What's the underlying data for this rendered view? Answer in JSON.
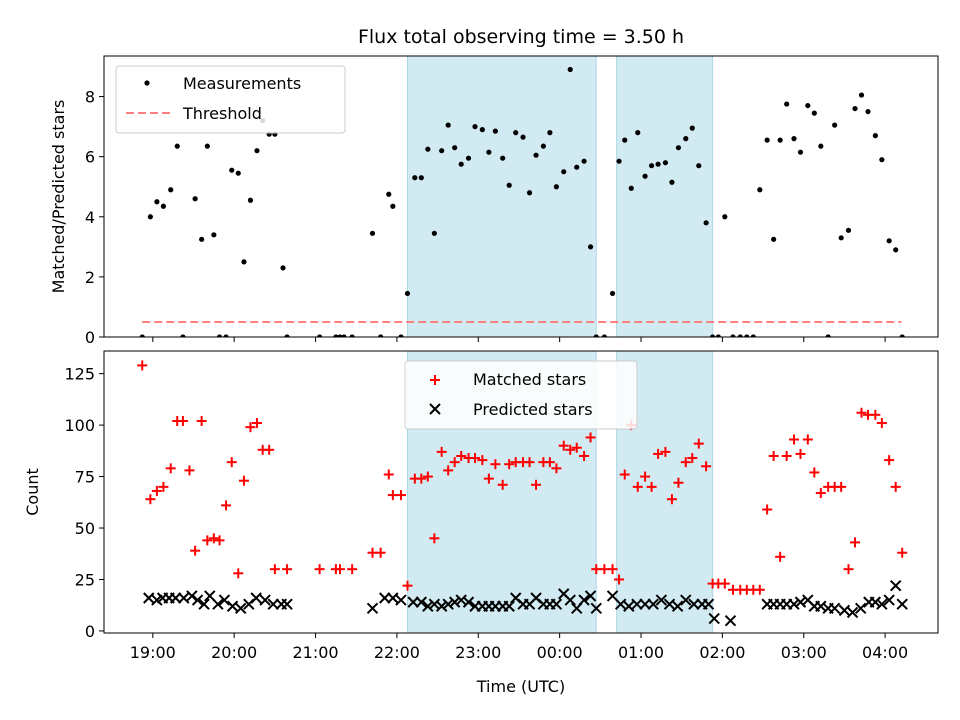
{
  "chart_data": [
    {
      "type": "scatter",
      "title": "Flux total observing time = 3.50 h",
      "xlabel": "",
      "ylabel": "Matched/Predicted stars",
      "xlim": [
        18.4,
        28.65
      ],
      "ylim": [
        0,
        9.35
      ],
      "yticks": [
        0,
        2,
        4,
        6,
        8
      ],
      "legend_position": "top-left",
      "shaded_intervals": [
        [
          22.13,
          24.45
        ],
        [
          24.7,
          25.88
        ]
      ],
      "series": [
        {
          "name": "Measurements",
          "kind": "points",
          "color": "#000000",
          "x": [
            18.87,
            18.97,
            19.05,
            19.13,
            19.22,
            19.3,
            19.37,
            19.52,
            19.6,
            19.67,
            19.75,
            19.82,
            19.9,
            19.97,
            20.05,
            20.12,
            20.2,
            20.28,
            20.35,
            20.43,
            20.5,
            20.6,
            20.65,
            21.05,
            21.25,
            21.3,
            21.35,
            21.45,
            21.7,
            21.8,
            21.9,
            21.95,
            22.05,
            22.13,
            22.22,
            22.3,
            22.38,
            22.46,
            22.55,
            22.63,
            22.71,
            22.79,
            22.88,
            22.96,
            23.05,
            23.13,
            23.21,
            23.3,
            23.38,
            23.46,
            23.55,
            23.63,
            23.71,
            23.8,
            23.88,
            23.96,
            24.05,
            24.13,
            24.21,
            24.3,
            24.38,
            24.45,
            24.55,
            24.65,
            24.73,
            24.8,
            24.88,
            24.96,
            25.05,
            25.13,
            25.21,
            25.3,
            25.38,
            25.46,
            25.55,
            25.63,
            25.71,
            25.8,
            25.88,
            25.95,
            26.03,
            26.13,
            26.22,
            26.3,
            26.38,
            26.46,
            26.55,
            26.63,
            26.71,
            26.79,
            26.88,
            26.96,
            27.05,
            27.13,
            27.21,
            27.3,
            27.38,
            27.46,
            27.55,
            27.63,
            27.71,
            27.79,
            27.88,
            27.96,
            28.05,
            28.13,
            28.21
          ],
          "y": [
            0,
            4.0,
            4.5,
            4.35,
            4.9,
            6.35,
            0,
            4.6,
            3.25,
            6.35,
            3.4,
            0,
            0,
            5.55,
            5.45,
            2.5,
            4.55,
            6.2,
            7.2,
            6.75,
            6.75,
            2.3,
            0,
            0,
            0,
            0,
            0,
            0,
            3.45,
            0,
            4.75,
            4.35,
            0,
            1.45,
            5.3,
            5.3,
            6.25,
            3.45,
            6.2,
            7.05,
            6.3,
            5.75,
            5.95,
            7.0,
            6.9,
            6.15,
            6.85,
            5.95,
            5.05,
            6.8,
            6.65,
            4.8,
            6.05,
            6.35,
            6.8,
            5.0,
            5.5,
            8.9,
            5.65,
            5.85,
            3.0,
            0,
            0,
            1.45,
            5.85,
            6.55,
            4.95,
            6.8,
            5.35,
            5.7,
            5.75,
            5.8,
            5.15,
            6.3,
            6.6,
            6.95,
            5.7,
            3.8,
            0,
            0,
            4.0,
            0,
            0,
            0,
            0,
            4.9,
            6.55,
            3.25,
            6.55,
            7.75,
            6.6,
            6.15,
            7.7,
            7.45,
            6.35,
            0,
            7.05,
            3.3,
            3.55,
            7.6,
            8.05,
            7.5,
            6.7,
            5.9,
            3.2,
            2.9,
            0
          ]
        },
        {
          "name": "Threshold",
          "kind": "dashed-line",
          "color": "#ff8080",
          "x": [
            18.87,
            28.2
          ],
          "y": [
            0.5,
            0.5
          ]
        }
      ]
    },
    {
      "type": "scatter",
      "title": "",
      "xlabel": "Time (UTC)",
      "ylabel": "Count",
      "xlim": [
        18.4,
        28.65
      ],
      "ylim": [
        -1,
        136
      ],
      "yticks": [
        0,
        25,
        50,
        75,
        100,
        125
      ],
      "xticks": [
        {
          "value": 19,
          "label": "19:00"
        },
        {
          "value": 20,
          "label": "20:00"
        },
        {
          "value": 21,
          "label": "21:00"
        },
        {
          "value": 22,
          "label": "22:00"
        },
        {
          "value": 23,
          "label": "23:00"
        },
        {
          "value": 24,
          "label": "00:00"
        },
        {
          "value": 25,
          "label": "01:00"
        },
        {
          "value": 26,
          "label": "02:00"
        },
        {
          "value": 27,
          "label": "03:00"
        },
        {
          "value": 28,
          "label": "04:00"
        }
      ],
      "legend_position": "top-center",
      "shaded_intervals": [
        [
          22.13,
          24.45
        ],
        [
          24.7,
          25.88
        ]
      ],
      "series": [
        {
          "name": "Matched stars",
          "marker": "plus",
          "color": "#ff0000",
          "x": [
            18.87,
            18.97,
            19.05,
            19.13,
            19.22,
            19.3,
            19.37,
            19.45,
            19.52,
            19.6,
            19.67,
            19.75,
            19.82,
            19.9,
            19.97,
            20.05,
            20.12,
            20.2,
            20.28,
            20.35,
            20.43,
            20.5,
            20.65,
            21.05,
            21.25,
            21.3,
            21.45,
            21.7,
            21.8,
            21.9,
            21.95,
            22.05,
            22.13,
            22.22,
            22.3,
            22.38,
            22.46,
            22.55,
            22.63,
            22.71,
            22.79,
            22.88,
            22.96,
            23.05,
            23.13,
            23.21,
            23.3,
            23.38,
            23.46,
            23.55,
            23.63,
            23.71,
            23.8,
            23.88,
            23.96,
            24.05,
            24.13,
            24.21,
            24.3,
            24.38,
            24.45,
            24.55,
            24.65,
            24.73,
            24.8,
            24.88,
            24.96,
            25.05,
            25.13,
            25.21,
            25.3,
            25.38,
            25.46,
            25.55,
            25.63,
            25.71,
            25.8,
            25.88,
            25.95,
            26.03,
            26.13,
            26.22,
            26.3,
            26.38,
            26.46,
            26.55,
            26.63,
            26.71,
            26.79,
            26.88,
            26.96,
            27.05,
            27.13,
            27.21,
            27.3,
            27.38,
            27.46,
            27.55,
            27.63,
            27.71,
            27.79,
            27.88,
            27.96,
            28.05,
            28.13,
            28.21
          ],
          "y": [
            129,
            64,
            68,
            70,
            79,
            102,
            102,
            78,
            39,
            102,
            44,
            45,
            44,
            61,
            82,
            28,
            73,
            99,
            101,
            88,
            88,
            30,
            30,
            30,
            30,
            30,
            30,
            38,
            38,
            76,
            66,
            66,
            22,
            74,
            74,
            75,
            45,
            87,
            78,
            82,
            85,
            84,
            84,
            83,
            74,
            81,
            71,
            81,
            82,
            82,
            82,
            71,
            82,
            82,
            79,
            90,
            88,
            89,
            85,
            94,
            30,
            30,
            30,
            25,
            76,
            100,
            70,
            75,
            70,
            86,
            87,
            64,
            72,
            82,
            84,
            91,
            80,
            23,
            23,
            23,
            20,
            20,
            20,
            20,
            20,
            59,
            85,
            36,
            85,
            93,
            86,
            93,
            77,
            67,
            70,
            70,
            70,
            30,
            43,
            106,
            105,
            105,
            101,
            83,
            70,
            38
          ]
        },
        {
          "name": "Predicted stars",
          "marker": "x",
          "color": "#000000",
          "x": [
            18.95,
            19.05,
            19.12,
            19.2,
            19.28,
            19.38,
            19.48,
            19.55,
            19.63,
            19.7,
            19.8,
            19.88,
            19.98,
            20.08,
            20.18,
            20.27,
            20.38,
            20.48,
            20.58,
            20.65,
            21.7,
            21.85,
            21.95,
            22.05,
            22.2,
            22.3,
            22.38,
            22.46,
            22.55,
            22.63,
            22.71,
            22.79,
            22.88,
            22.96,
            23.05,
            23.13,
            23.21,
            23.3,
            23.38,
            23.46,
            23.55,
            23.63,
            23.71,
            23.8,
            23.88,
            23.96,
            24.05,
            24.13,
            24.21,
            24.3,
            24.38,
            24.45,
            24.65,
            24.75,
            24.85,
            24.95,
            25.05,
            25.15,
            25.25,
            25.35,
            25.45,
            25.55,
            25.65,
            25.75,
            25.83,
            25.9,
            26.1,
            26.55,
            26.63,
            26.71,
            26.79,
            26.88,
            26.96,
            27.05,
            27.13,
            27.21,
            27.3,
            27.38,
            27.5,
            27.6,
            27.7,
            27.8,
            27.88,
            27.96,
            28.05,
            28.13,
            28.21
          ],
          "y": [
            16,
            15,
            16,
            16,
            16,
            16,
            17,
            15,
            13,
            17,
            13,
            15,
            12,
            11,
            13,
            16,
            15,
            13,
            13,
            13,
            11,
            16,
            16,
            15,
            14,
            14,
            12,
            13,
            12,
            13,
            14,
            15,
            14,
            12,
            12,
            12,
            12,
            12,
            12,
            16,
            13,
            13,
            16,
            13,
            13,
            13,
            18,
            15,
            11,
            15,
            17,
            11,
            17,
            13,
            12,
            13,
            13,
            13,
            15,
            13,
            12,
            15,
            13,
            13,
            13,
            6,
            5,
            13,
            13,
            13,
            13,
            13,
            14,
            15,
            12,
            12,
            11,
            11,
            10,
            9,
            11,
            14,
            14,
            13,
            15,
            22,
            13
          ]
        }
      ]
    }
  ]
}
